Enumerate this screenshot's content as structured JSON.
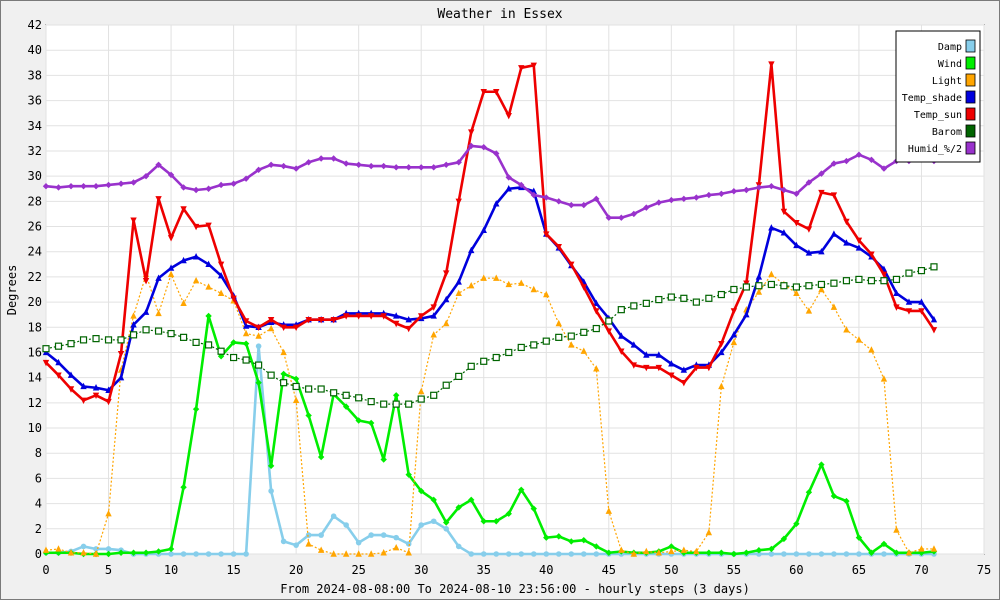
{
  "chart_data": {
    "type": "line",
    "title": "Weather in Essex",
    "xlabel": "From 2024-08-08:00 To 2024-08-10 23:56:00 - hourly steps (3 days)",
    "ylabel": "Degrees",
    "xlim": [
      0,
      75
    ],
    "ylim": [
      0,
      42
    ],
    "x_ticks": [
      "0",
      "5",
      "10",
      "15",
      "20",
      "25",
      "30",
      "35",
      "40",
      "45",
      "50",
      "55",
      "60",
      "65",
      "70",
      "75"
    ],
    "y_ticks": [
      "0",
      "2",
      "4",
      "6",
      "8",
      "10",
      "12",
      "14",
      "16",
      "18",
      "20",
      "22",
      "24",
      "26",
      "28",
      "30",
      "32",
      "34",
      "36",
      "38",
      "40",
      "42"
    ],
    "grid": true,
    "legend_position": "top-right",
    "series": [
      {
        "name": "Damp",
        "color": "#87ceeb",
        "marker": "circle",
        "values": [
          0.1,
          0.1,
          0.2,
          0.6,
          0.4,
          0.4,
          0.3,
          0.0,
          0.0,
          0.0,
          0.0,
          0.0,
          0.0,
          0.0,
          0.0,
          0.0,
          0.0,
          16.5,
          5.0,
          1.0,
          0.7,
          1.5,
          1.5,
          3.0,
          2.3,
          0.9,
          1.5,
          1.5,
          1.3,
          0.8,
          2.3,
          2.6,
          2.0,
          0.6,
          0.0,
          0.0,
          0.0,
          0.0,
          0.0,
          0.0,
          0.0,
          0.0,
          0.0,
          0.0,
          0.0,
          0.0,
          0.0,
          0.0,
          0.0,
          0.0,
          0.0,
          0.0,
          0.0,
          0.0,
          0.0,
          0.0,
          0.0,
          0.0,
          0.0,
          0.0,
          0.0,
          0.0,
          0.0,
          0.0,
          0.0,
          0.0,
          0.0,
          0.0,
          0.0,
          0.0,
          0.0,
          0.0
        ]
      },
      {
        "name": "Wind",
        "color": "#00ee00",
        "marker": "diamond",
        "values": [
          0.1,
          0.1,
          0.1,
          0.0,
          0.0,
          0.0,
          0.1,
          0.1,
          0.1,
          0.2,
          0.4,
          5.3,
          11.5,
          18.9,
          15.7,
          16.8,
          16.7,
          13.6,
          7.0,
          14.3,
          13.9,
          11.0,
          7.7,
          12.7,
          11.7,
          10.6,
          10.4,
          7.5,
          12.6,
          6.3,
          5.0,
          4.3,
          2.5,
          3.7,
          4.3,
          2.6,
          2.6,
          3.2,
          5.1,
          3.6,
          1.3,
          1.4,
          1.0,
          1.1,
          0.6,
          0.1,
          0.2,
          0.1,
          0.1,
          0.2,
          0.6,
          0.1,
          0.1,
          0.1,
          0.1,
          0.0,
          0.1,
          0.3,
          0.4,
          1.2,
          2.4,
          4.9,
          7.1,
          4.6,
          4.2,
          1.3,
          0.1,
          0.8,
          0.1,
          0.1,
          0.1,
          0.2
        ]
      },
      {
        "name": "Light",
        "color": "#ffa500",
        "marker": "triangle-up",
        "values": [
          0.3,
          0.4,
          0.1,
          0.1,
          0.0,
          3.2,
          14.6,
          18.9,
          22.2,
          19.1,
          22.2,
          19.9,
          21.7,
          21.2,
          20.7,
          20.1,
          17.5,
          17.3,
          17.9,
          16.0,
          12.2,
          0.8,
          0.3,
          0.0,
          0.0,
          0.0,
          0.0,
          0.1,
          0.5,
          0.1,
          12.9,
          17.4,
          18.3,
          20.7,
          21.3,
          21.9,
          21.9,
          21.4,
          21.5,
          21.0,
          20.6,
          18.3,
          16.6,
          16.1,
          14.7,
          3.4,
          0.3,
          0.0,
          0.2,
          0.1,
          0.2,
          0.3,
          0.2,
          1.7,
          13.3,
          16.8,
          19.4,
          20.8,
          22.2,
          21.4,
          20.7,
          19.3,
          21.0,
          19.6,
          17.8,
          17.0,
          16.2,
          13.9,
          1.9,
          0.1,
          0.4,
          0.4
        ]
      },
      {
        "name": "Temp_shade",
        "color": "#0000dd",
        "marker": "triangle-up",
        "values": [
          16.0,
          15.2,
          14.2,
          13.3,
          13.2,
          13.0,
          14.0,
          18.2,
          19.2,
          21.9,
          22.7,
          23.3,
          23.6,
          23.0,
          22.1,
          20.5,
          18.1,
          18.0,
          18.4,
          18.2,
          18.2,
          18.6,
          18.6,
          18.6,
          19.1,
          19.1,
          19.1,
          19.1,
          18.9,
          18.6,
          18.7,
          18.9,
          20.2,
          21.6,
          24.1,
          25.7,
          27.8,
          29.0,
          29.1,
          28.8,
          25.4,
          24.3,
          22.9,
          21.6,
          19.9,
          18.7,
          17.3,
          16.6,
          15.8,
          15.8,
          15.1,
          14.6,
          15.0,
          15.0,
          16.0,
          17.4,
          19.0,
          22.0,
          25.9,
          25.5,
          24.5,
          23.9,
          24.0,
          25.4,
          24.7,
          24.3,
          23.6,
          22.6,
          20.7,
          20.0,
          20.0,
          18.6
        ]
      },
      {
        "name": "Temp_sun",
        "color": "#ee0000",
        "marker": "triangle-down",
        "values": [
          15.2,
          14.2,
          13.1,
          12.2,
          12.6,
          12.1,
          15.9,
          26.5,
          21.7,
          28.2,
          25.1,
          27.4,
          26.0,
          26.1,
          23.0,
          20.3,
          18.5,
          18.0,
          18.6,
          18.0,
          18.0,
          18.6,
          18.6,
          18.6,
          18.9,
          18.9,
          18.9,
          18.9,
          18.3,
          17.9,
          18.9,
          19.6,
          22.3,
          28.0,
          33.5,
          36.7,
          36.7,
          34.8,
          38.6,
          38.8,
          25.4,
          24.4,
          23.0,
          21.2,
          19.3,
          17.7,
          16.1,
          15.0,
          14.8,
          14.8,
          14.2,
          13.6,
          14.8,
          14.8,
          16.7,
          19.3,
          21.5,
          29.3,
          38.9,
          27.2,
          26.3,
          25.8,
          28.7,
          28.5,
          26.4,
          24.9,
          23.8,
          22.2,
          19.6,
          19.3,
          19.3,
          17.8
        ]
      },
      {
        "name": "Barom",
        "color": "#006400",
        "marker": "square",
        "values": [
          16.3,
          16.5,
          16.7,
          17.0,
          17.1,
          17.0,
          17.0,
          17.4,
          17.8,
          17.7,
          17.5,
          17.2,
          16.8,
          16.6,
          16.1,
          15.6,
          15.4,
          15.0,
          14.2,
          13.6,
          13.3,
          13.1,
          13.1,
          12.8,
          12.6,
          12.4,
          12.1,
          11.9,
          11.9,
          11.9,
          12.3,
          12.6,
          13.4,
          14.1,
          14.9,
          15.3,
          15.6,
          16.0,
          16.4,
          16.6,
          16.9,
          17.2,
          17.3,
          17.6,
          17.9,
          18.5,
          19.4,
          19.7,
          19.9,
          20.2,
          20.4,
          20.3,
          20.0,
          20.3,
          20.6,
          21.0,
          21.2,
          21.3,
          21.4,
          21.3,
          21.2,
          21.3,
          21.4,
          21.5,
          21.7,
          21.8,
          21.7,
          21.7,
          21.8,
          22.3,
          22.5,
          22.8
        ]
      },
      {
        "name": "Humid_%/2",
        "color": "#9932cc",
        "marker": "diamond",
        "values": [
          29.2,
          29.1,
          29.2,
          29.2,
          29.2,
          29.3,
          29.4,
          29.5,
          30.0,
          30.9,
          30.1,
          29.1,
          28.9,
          29.0,
          29.3,
          29.4,
          29.8,
          30.5,
          30.9,
          30.8,
          30.6,
          31.1,
          31.4,
          31.4,
          31.0,
          30.9,
          30.8,
          30.8,
          30.7,
          30.7,
          30.7,
          30.7,
          30.9,
          31.1,
          32.4,
          32.3,
          31.8,
          29.9,
          29.3,
          28.5,
          28.3,
          28.0,
          27.7,
          27.7,
          28.2,
          26.7,
          26.7,
          27.0,
          27.5,
          27.9,
          28.1,
          28.2,
          28.3,
          28.5,
          28.6,
          28.8,
          28.9,
          29.1,
          29.2,
          28.9,
          28.6,
          29.5,
          30.2,
          31.0,
          31.2,
          31.7,
          31.3,
          30.6,
          31.2,
          31.2,
          31.4,
          31.2
        ]
      }
    ]
  }
}
